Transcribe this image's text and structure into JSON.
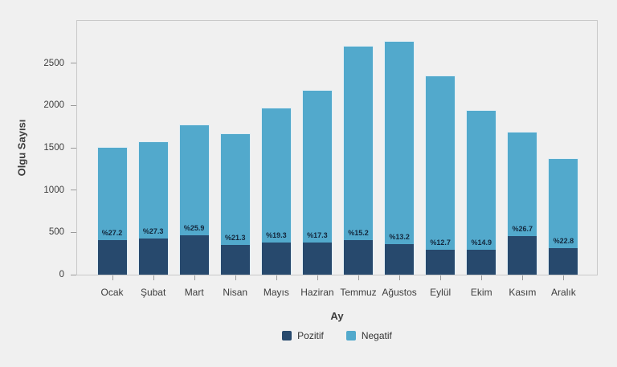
{
  "chart_data": {
    "type": "bar",
    "stacked": true,
    "title": "",
    "xlabel": "Ay",
    "ylabel": "Olgu Sayısı",
    "ylim": [
      0,
      3000
    ],
    "yticks": [
      0,
      500,
      1000,
      1500,
      2000,
      2500
    ],
    "grid": false,
    "legend_position": "bottom",
    "categories": [
      "Ocak",
      "Şubat",
      "Mart",
      "Nisan",
      "Mayıs",
      "Haziran",
      "Temmuz",
      "Ağustos",
      "Eylül",
      "Ekim",
      "Kasım",
      "Aralık"
    ],
    "series": [
      {
        "name": "Pozitif",
        "color": "#27496d",
        "values": [
          411,
          431,
          461,
          356,
          381,
          377,
          412,
          364,
          299,
          291,
          451,
          314
        ]
      },
      {
        "name": "Negatif",
        "color": "#52a9cc",
        "values": [
          1099,
          1149,
          1319,
          1314,
          1594,
          1803,
          2298,
          2396,
          2056,
          1659,
          1239,
          1061
        ]
      }
    ],
    "totals": [
      1510,
      1580,
      1780,
      1670,
      1975,
      2180,
      2710,
      2760,
      2355,
      1950,
      1690,
      1375
    ],
    "bar_labels": [
      "%27.2",
      "%27.3",
      "%25.9",
      "%21.3",
      "%19.3",
      "%17.3",
      "%15.2",
      "%13.2",
      "%12.7",
      "%14.9",
      "%26.7",
      "%22.8"
    ]
  },
  "colors": {
    "background": "#f0f0f0",
    "plot_border": "#c9c9c9",
    "tick": "#9a9a9a",
    "axis_text": "#3d3d3d",
    "bar_label_text": "#13273c",
    "positive": "#27496d",
    "negative": "#52a9cc"
  }
}
